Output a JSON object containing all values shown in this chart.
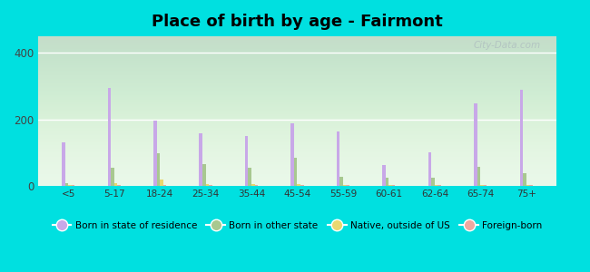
{
  "title": "Place of birth by age - Fairmont",
  "categories": [
    "<5",
    "5-17",
    "18-24",
    "25-34",
    "35-44",
    "45-54",
    "55-59",
    "60-61",
    "62-64",
    "65-74",
    "75+"
  ],
  "series": {
    "Born in state of residence": [
      130,
      295,
      197,
      158,
      150,
      187,
      163,
      62,
      100,
      248,
      290
    ],
    "Born in other state": [
      8,
      55,
      97,
      65,
      55,
      83,
      28,
      25,
      25,
      58,
      38
    ],
    "Native, outside of US": [
      3,
      8,
      18,
      5,
      5,
      5,
      3,
      3,
      3,
      3,
      3
    ],
    "Foreign-born": [
      3,
      3,
      3,
      3,
      3,
      3,
      3,
      3,
      3,
      3,
      3
    ]
  },
  "colors": {
    "Born in state of residence": "#c8a8e8",
    "Born in other state": "#a8c890",
    "Native, outside of US": "#e8d870",
    "Foreign-born": "#f0a8a0"
  },
  "ylim": [
    0,
    450
  ],
  "yticks": [
    0,
    200,
    400
  ],
  "outer_background": "#00e0e0",
  "plot_bg_top": "#e8f8e8",
  "plot_bg_bottom": "#f8fff8",
  "watermark": "City-Data.com",
  "bar_width": 0.07,
  "title_fontsize": 13
}
